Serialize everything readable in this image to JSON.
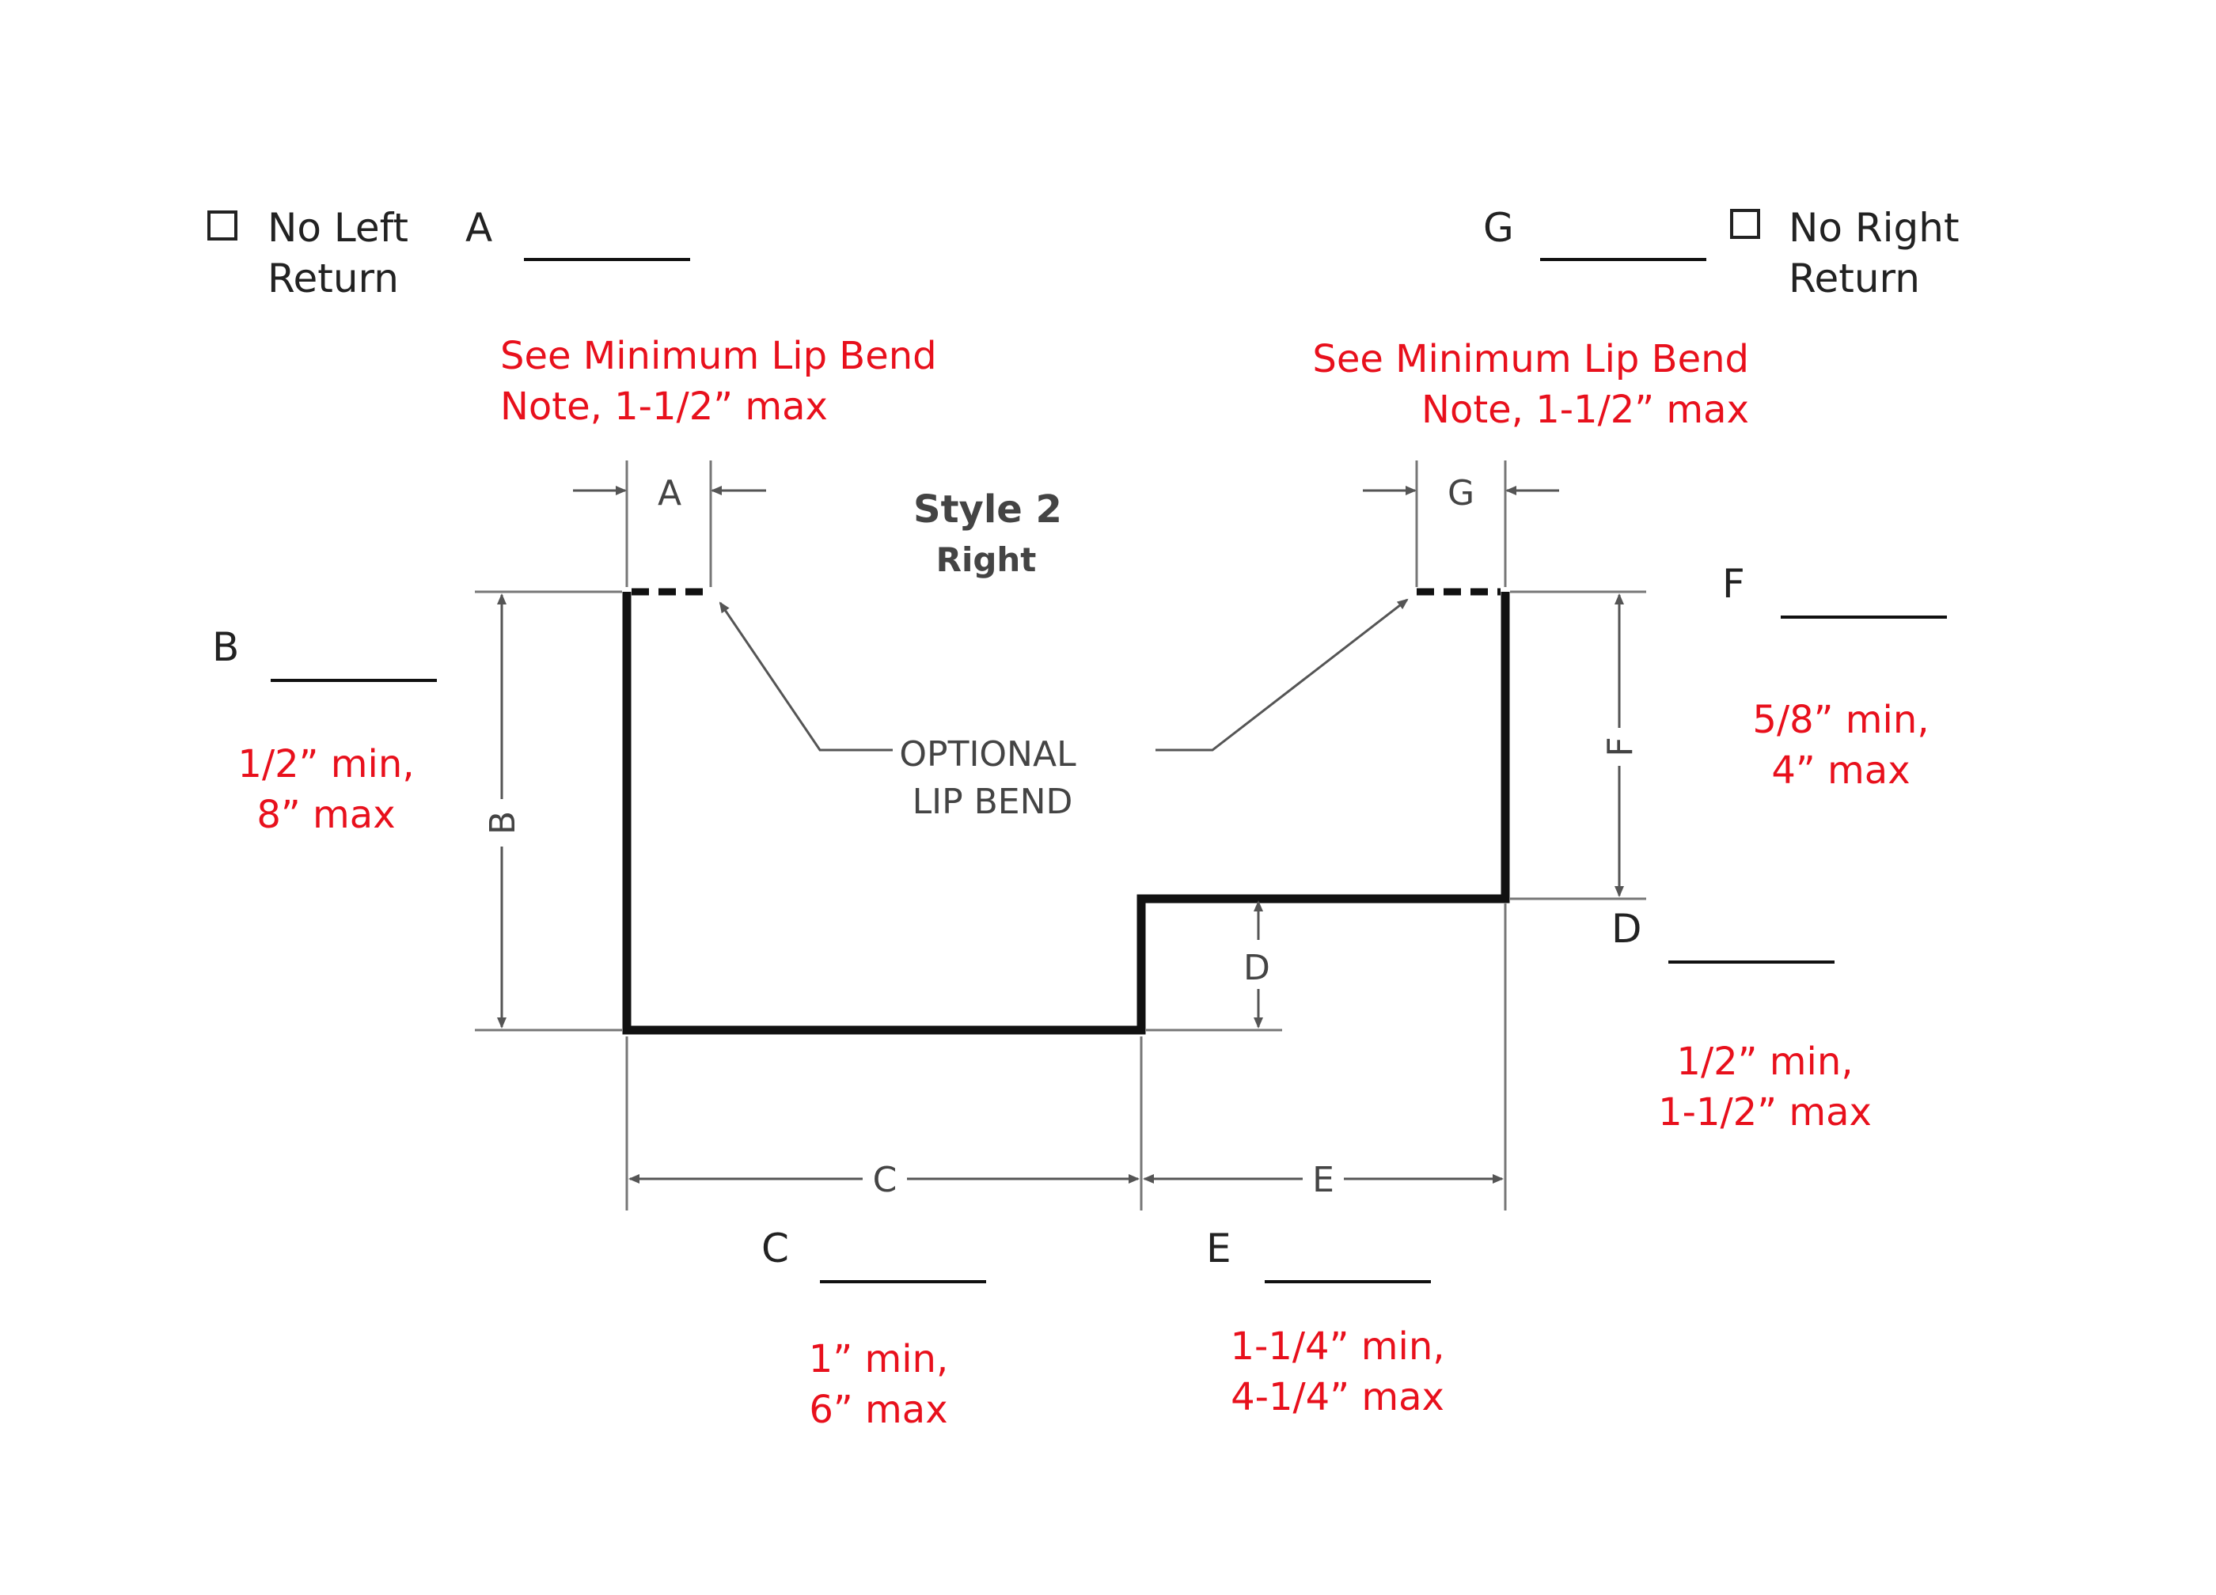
{
  "left_return": {
    "checkbox_label_line1": "No Left",
    "checkbox_label_line2": "Return",
    "checked": false
  },
  "right_return": {
    "checkbox_label_line1": "No Right",
    "checkbox_label_line2": "Return",
    "checked": false
  },
  "fields": {
    "A": {
      "label": "A",
      "value": ""
    },
    "B": {
      "label": "B",
      "value": "",
      "note_line1": "1/2” min,",
      "note_line2": "8” max"
    },
    "C": {
      "label": "C",
      "value": "",
      "note_line1": "1” min,",
      "note_line2": "6” max"
    },
    "D": {
      "label": "D",
      "value": "",
      "note_line1": "1/2” min,",
      "note_line2": "1-1/2” max"
    },
    "E": {
      "label": "E",
      "value": "",
      "note_line1": "1-1/4” min,",
      "note_line2": "4-1/4” max"
    },
    "F": {
      "label": "F",
      "value": "",
      "note_line1": "5/8” min,",
      "note_line2": "4” max"
    },
    "G": {
      "label": "G",
      "value": ""
    }
  },
  "lip_notes": {
    "left_line1": "See Minimum Lip Bend",
    "left_line2": "Note, 1-1/2” max",
    "right_line1": "See Minimum Lip Bend",
    "right_line2": "Note, 1-1/2” max"
  },
  "drawing": {
    "style_title": "Style 2",
    "style_subtitle": "Right",
    "optional_line1": "OPTIONAL",
    "optional_line2": "LIP BEND",
    "dim_A": "A",
    "dim_B": "B",
    "dim_C": "C",
    "dim_D": "D",
    "dim_E": "E",
    "dim_F": "F",
    "dim_G": "G"
  },
  "colors": {
    "note_red": "#e8101c",
    "line": "#111111",
    "dim_line": "#555555"
  }
}
